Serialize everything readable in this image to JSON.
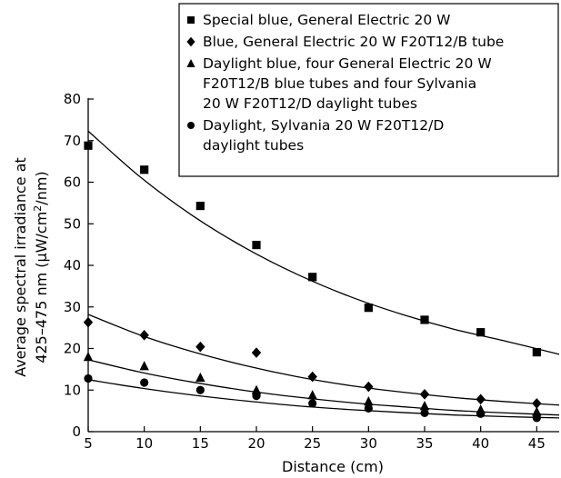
{
  "chart_data": {
    "type": "scatter",
    "title": "",
    "xlabel": "Distance (cm)",
    "ylabel_line1": "Average spectral irradiance at",
    "ylabel_line2_prefix": "425–475 nm (μW/cm",
    "ylabel_line2_sup": "2",
    "ylabel_line2_suffix": "/nm)",
    "xlim": [
      5,
      47
    ],
    "ylim": [
      0,
      80
    ],
    "x_ticks": [
      5,
      10,
      15,
      20,
      25,
      30,
      35,
      40,
      45
    ],
    "y_ticks": [
      0,
      10,
      20,
      30,
      40,
      50,
      60,
      70,
      80
    ],
    "grid": false,
    "legend_position": "top-right",
    "series": [
      {
        "name_lines": [
          "Special blue, General Electric 20 W"
        ],
        "marker": "square",
        "x": [
          5,
          10,
          15,
          20,
          25,
          30,
          35,
          40,
          45
        ],
        "y": [
          68.8,
          63,
          54.3,
          44.9,
          37.2,
          29.8,
          26.9,
          23.9,
          19.1
        ],
        "fit": [
          72.3,
          61.2,
          51.9,
          44.2,
          37.8,
          32.5,
          28.2,
          24.6,
          21.7,
          18.6
        ]
      },
      {
        "name_lines": [
          "Blue, General Electric 20 W F20T12/B tube"
        ],
        "marker": "diamond",
        "x": [
          5,
          10,
          15,
          20,
          25,
          30,
          35,
          40,
          45
        ],
        "y": [
          26.3,
          23.2,
          20.4,
          19,
          13.2,
          10.8,
          9,
          7.8,
          6.8
        ],
        "fit": [
          28.2,
          23.2,
          19.2,
          15.9,
          13.2,
          11.1,
          9.5,
          8.2,
          7.2,
          6.4
        ]
      },
      {
        "name_lines": [
          "Daylight blue, four General Electric 20 W",
          "F20T12/B blue tubes and four Sylvania",
          "20 W F20T12/D daylight tubes"
        ],
        "marker": "triangle",
        "x": [
          5,
          10,
          15,
          20,
          25,
          30,
          35,
          40,
          45
        ],
        "y": [
          18,
          15.8,
          13,
          10,
          8.8,
          7.3,
          6.2,
          5.3,
          4.8
        ],
        "fit": [
          17.3,
          14.3,
          11.9,
          9.9,
          8.3,
          7,
          6,
          5.1,
          4.5,
          4
        ]
      },
      {
        "name_lines": [
          "Daylight, Sylvania 20 W F20T12/D",
          "daylight tubes"
        ],
        "marker": "circle",
        "x": [
          5,
          10,
          15,
          20,
          25,
          30,
          35,
          40,
          45
        ],
        "y": [
          12.8,
          11.8,
          10,
          8.6,
          6.8,
          5.6,
          4.5,
          4.3,
          3.3
        ],
        "fit": [
          12.5,
          10.5,
          8.8,
          7.4,
          6.2,
          5.3,
          4.6,
          4,
          3.6,
          3.3
        ]
      }
    ]
  }
}
